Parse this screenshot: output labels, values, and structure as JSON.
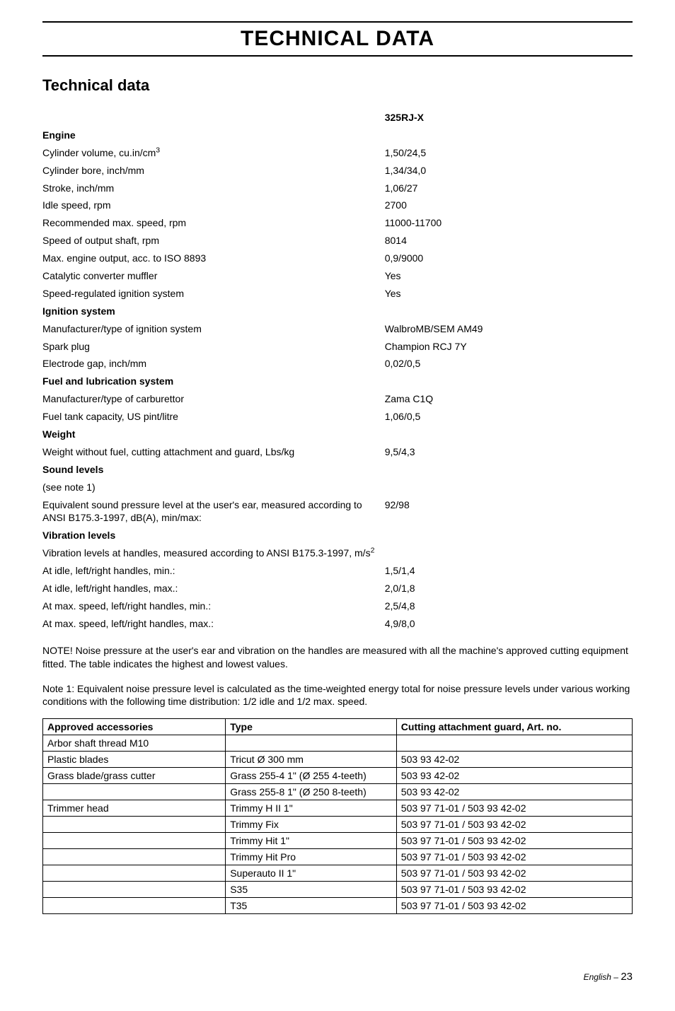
{
  "header": {
    "main_title": "TECHNICAL DATA",
    "sub_title": "Technical data",
    "model": "325RJ-X"
  },
  "sections": [
    {
      "heading": "Engine",
      "rows": [
        {
          "label": "Cylinder volume,  cu.in/cm",
          "sup": "3",
          "value": "1,50/24,5"
        },
        {
          "label": "Cylinder bore,   inch/mm",
          "value": "1,34/34,0"
        },
        {
          "label": "Stroke,  inch/mm",
          "value": "1,06/27"
        },
        {
          "label": "Idle speed, rpm",
          "value": "2700"
        },
        {
          "label": "Recommended max. speed, rpm",
          "value": "11000-11700"
        },
        {
          "label": "Speed of output shaft, rpm",
          "value": "8014"
        },
        {
          "label": "Max. engine output, acc. to ISO 8893",
          "value": "0,9/9000"
        },
        {
          "label": "Catalytic converter muffler",
          "value": "Yes"
        },
        {
          "label": "Speed-regulated ignition system",
          "value": "Yes"
        }
      ]
    },
    {
      "heading": "Ignition system",
      "rows": [
        {
          "label": "Manufacturer/type of ignition system",
          "value": "WalbroMB/SEM AM49"
        },
        {
          "label": "Spark plug",
          "value": "Champion RCJ 7Y"
        },
        {
          "label": "Electrode gap, inch/mm",
          "value": "0,02/0,5"
        }
      ]
    },
    {
      "heading": "Fuel and lubrication system",
      "rows": [
        {
          "label": "Manufacturer/type of carburettor",
          "value": "Zama C1Q"
        },
        {
          "label": "Fuel tank capacity, US pint/litre",
          "value": "1,06/0,5"
        }
      ]
    },
    {
      "heading": "Weight",
      "rows": [
        {
          "label": "Weight without fuel, cutting attachment and guard, Lbs/kg",
          "value": "9,5/4,3"
        }
      ]
    },
    {
      "heading": "Sound levels",
      "rows": [
        {
          "label": "(see note 1)",
          "value": ""
        },
        {
          "label": "Equivalent sound pressure level at the user's ear, measured according to ANSI  B175.3-1997, dB(A), min/max:",
          "value": "92/98"
        }
      ]
    },
    {
      "heading": "Vibration levels",
      "rows": [
        {
          "label": "Vibration levels at handles, measured according to ANSI B175.3-1997, m/s",
          "sup": "2",
          "value": ""
        },
        {
          "label": "At idle, left/right handles, min.:",
          "value": "1,5/1,4"
        },
        {
          "label": "At idle, left/right handles, max.:",
          "value": "2,0/1,8"
        },
        {
          "label": "At max. speed, left/right handles, min.:",
          "value": "2,5/4,8"
        },
        {
          "label": "At max. speed, left/right handles, max.:",
          "value": "4,9/8,0"
        }
      ]
    }
  ],
  "notes": [
    "NOTE! Noise pressure at the user's ear and vibration on the handles are measured with all the machine's approved cutting equipment fitted. The table indicates the highest and lowest values.",
    "Note 1: Equivalent noise pressure level is calculated as the time-weighted energy total for noise pressure levels under various working conditions with the following time distribution: 1/2 idle and 1/2 max. speed."
  ],
  "accessories": {
    "columns": [
      "Approved accessories",
      "Type",
      "Cutting attachment guard, Art. no."
    ],
    "rows": [
      [
        "Arbor shaft thread M10",
        "",
        ""
      ],
      [
        "Plastic blades",
        "Tricut Ø 300 mm",
        "503 93 42-02"
      ],
      [
        "Grass blade/grass cutter",
        "Grass 255-4 1\" (Ø 255 4-teeth)",
        "503 93 42-02"
      ],
      [
        "",
        "Grass 255-8 1\" (Ø 250 8-teeth)",
        "503 93 42-02"
      ],
      [
        "Trimmer head",
        "Trimmy H II 1\"",
        "503 97 71-01 / 503 93 42-02"
      ],
      [
        "",
        "Trimmy Fix",
        "503 97 71-01 / 503 93 42-02"
      ],
      [
        "",
        "Trimmy Hit 1\"",
        "503 97 71-01 / 503 93 42-02"
      ],
      [
        "",
        "Trimmy Hit Pro",
        "503 97 71-01 / 503 93 42-02"
      ],
      [
        "",
        "Superauto II 1\"",
        "503 97 71-01 / 503 93 42-02"
      ],
      [
        "",
        "S35",
        "503 97 71-01 / 503 93 42-02"
      ],
      [
        "",
        "T35",
        "503 97 71-01 / 503 93 42-02"
      ]
    ]
  },
  "footer": {
    "language": "English",
    "separator": " – ",
    "page": "23"
  }
}
